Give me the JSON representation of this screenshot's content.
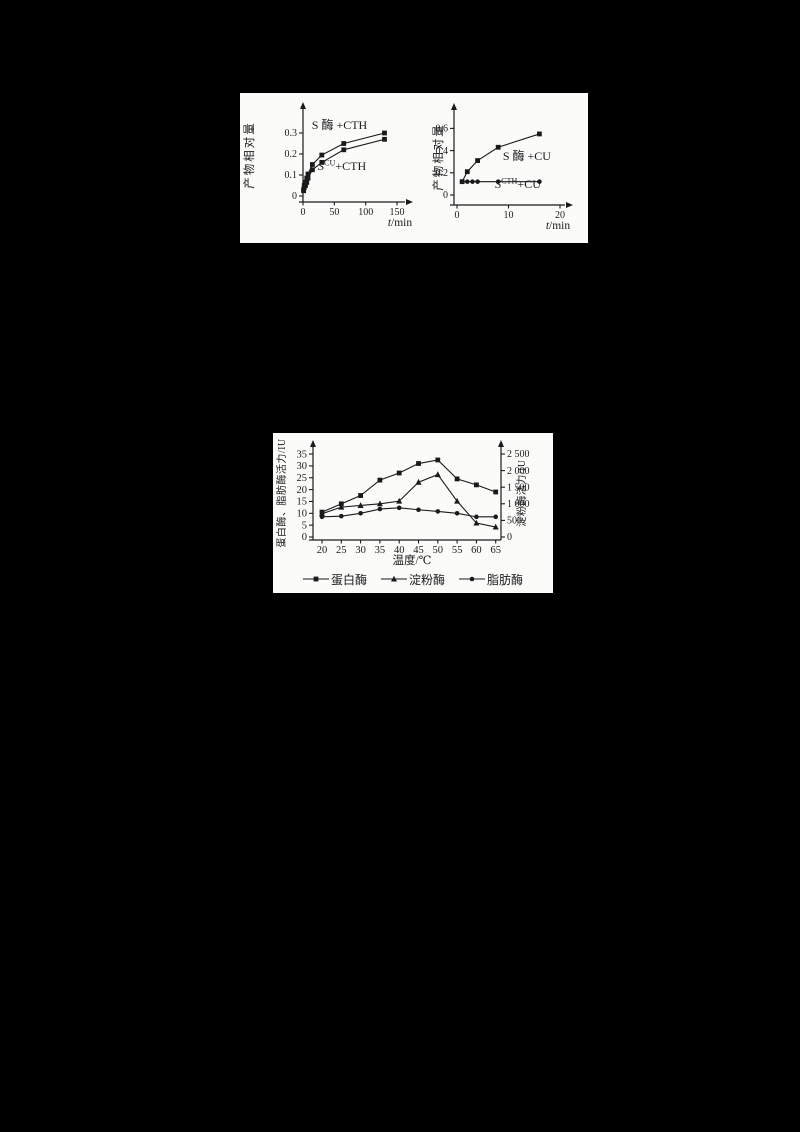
{
  "page": {
    "background": "#000000",
    "panel_background": "#fbfbfa",
    "ink": "#1a1a1a"
  },
  "chart_data": [
    {
      "type": "line",
      "title": "",
      "ylabel": "产物相对量",
      "xlabel_parts": [
        {
          "t": "t",
          "i": true
        },
        {
          "t": "/min"
        }
      ],
      "xlim": [
        0,
        165
      ],
      "ylim": [
        0,
        0.36
      ],
      "grid": false,
      "xticks": [
        {
          "v": 0,
          "label": "0"
        },
        {
          "v": 50,
          "label": "50"
        },
        {
          "v": 100,
          "label": "100"
        },
        {
          "v": 150,
          "label": "150"
        }
      ],
      "yticks": [
        {
          "v": 0,
          "label": "0"
        },
        {
          "v": 0.1,
          "label": "0.1"
        },
        {
          "v": 0.2,
          "label": "0.2"
        },
        {
          "v": 0.3,
          "label": "0.3"
        }
      ],
      "series": [
        {
          "name": "S酶+CTH",
          "marker": "square",
          "x": [
            1,
            2,
            4,
            6,
            8,
            15,
            30,
            65,
            130
          ],
          "y": [
            0.03,
            0.05,
            0.065,
            0.085,
            0.105,
            0.15,
            0.195,
            0.25,
            0.3
          ]
        },
        {
          "name": "SCU+CTH",
          "marker": "square",
          "x": [
            1,
            2,
            4,
            6,
            8,
            15,
            30,
            65,
            130
          ],
          "y": [
            0.025,
            0.04,
            0.05,
            0.065,
            0.085,
            0.125,
            0.16,
            0.22,
            0.27
          ]
        }
      ],
      "annotations": [
        {
          "parts": [
            {
              "t": "S 酶 +CTH"
            }
          ],
          "x": 14,
          "y": 0.32
        },
        {
          "parts": [
            {
              "t": "S",
              "i": true
            },
            {
              "t": "CU",
              "sup": true
            },
            {
              "t": "+CTH"
            }
          ],
          "x": 24,
          "y": 0.124
        }
      ]
    },
    {
      "type": "line",
      "title": "",
      "ylabel": "产物相对量",
      "xlabel_parts": [
        {
          "t": "t",
          "i": true
        },
        {
          "t": "/min"
        }
      ],
      "xlim": [
        0,
        22.5
      ],
      "ylim": [
        0,
        0.66
      ],
      "grid": false,
      "xticks": [
        {
          "v": 0,
          "label": "0"
        },
        {
          "v": 10,
          "label": "10"
        },
        {
          "v": 20,
          "label": "20"
        }
      ],
      "yticks": [
        {
          "v": 0,
          "label": "0"
        },
        {
          "v": 0.2,
          "label": "0.2"
        },
        {
          "v": 0.4,
          "label": "0.4"
        },
        {
          "v": 0.6,
          "label": "0.6"
        }
      ],
      "series": [
        {
          "name": "S酶+CU",
          "marker": "square",
          "x": [
            1,
            2,
            4,
            8,
            16
          ],
          "y": [
            0.12,
            0.21,
            0.31,
            0.43,
            0.55
          ]
        },
        {
          "name": "SCTH+CU",
          "marker": "circle",
          "x": [
            1,
            2,
            3,
            4,
            8,
            16
          ],
          "y": [
            0.12,
            0.12,
            0.12,
            0.12,
            0.12,
            0.12
          ]
        }
      ],
      "annotations": [
        {
          "parts": [
            {
              "t": "S 酶 +CU"
            }
          ],
          "x": 8.9,
          "y": 0.315
        },
        {
          "parts": [
            {
              "t": "S",
              "i": true
            },
            {
              "t": "CTH",
              "sup": true
            },
            {
              "t": "+CU"
            }
          ],
          "x": 7.4,
          "y": 0.063
        }
      ]
    },
    {
      "type": "line",
      "title": "",
      "ylabel_left": "蛋白酶、脂肪酶活力/IU",
      "ylabel_right": "淀粉酶活力/IU",
      "xlabel_parts": [
        {
          "t": "温度/℃"
        }
      ],
      "xlim": [
        20,
        65
      ],
      "ylim_left": [
        0,
        37
      ],
      "ylim_right": [
        0,
        2650
      ],
      "grid": false,
      "x": [
        20,
        25,
        30,
        35,
        40,
        45,
        50,
        55,
        60,
        65
      ],
      "xticks": [
        {
          "v": 20,
          "label": "20"
        },
        {
          "v": 25,
          "label": "25"
        },
        {
          "v": 30,
          "label": "30"
        },
        {
          "v": 35,
          "label": "35"
        },
        {
          "v": 40,
          "label": "40"
        },
        {
          "v": 45,
          "label": "45"
        },
        {
          "v": 50,
          "label": "50"
        },
        {
          "v": 55,
          "label": "55"
        },
        {
          "v": 60,
          "label": "60"
        },
        {
          "v": 65,
          "label": "65"
        }
      ],
      "yticks_left": [
        {
          "v": 0,
          "label": "0"
        },
        {
          "v": 5,
          "label": "5"
        },
        {
          "v": 10,
          "label": "10"
        },
        {
          "v": 15,
          "label": "15"
        },
        {
          "v": 20,
          "label": "20"
        },
        {
          "v": 25,
          "label": "25"
        },
        {
          "v": 30,
          "label": "30"
        },
        {
          "v": 35,
          "label": "35"
        }
      ],
      "yticks_right": [
        {
          "v": 0,
          "label": "0"
        },
        {
          "v": 500,
          "label": "500"
        },
        {
          "v": 1000,
          "label": "1 000"
        },
        {
          "v": 1500,
          "label": "1 500"
        },
        {
          "v": 2000,
          "label": "2 000"
        },
        {
          "v": 2500,
          "label": "2 500"
        }
      ],
      "series": [
        {
          "name": "蛋白酶",
          "marker": "square",
          "axis": "left",
          "values": [
            10.5,
            14,
            17.5,
            24,
            27,
            31,
            32.5,
            24.5,
            22,
            19
          ]
        },
        {
          "name": "淀粉酶",
          "marker": "triangle",
          "axis": "right",
          "values": [
            700,
            900,
            950,
            1000,
            1080,
            1650,
            1880,
            1080,
            420,
            300
          ]
        },
        {
          "name": "脂肪酶",
          "marker": "circle",
          "axis": "left",
          "values": [
            8.5,
            8.8,
            10,
            11.8,
            12.3,
            11.5,
            10.8,
            10,
            8.5,
            8.5
          ]
        }
      ],
      "legend": [
        {
          "marker": "square",
          "label": "蛋白酶"
        },
        {
          "marker": "triangle",
          "label": "淀粉酶"
        },
        {
          "marker": "circle",
          "label": "脂肪酶"
        }
      ]
    }
  ]
}
